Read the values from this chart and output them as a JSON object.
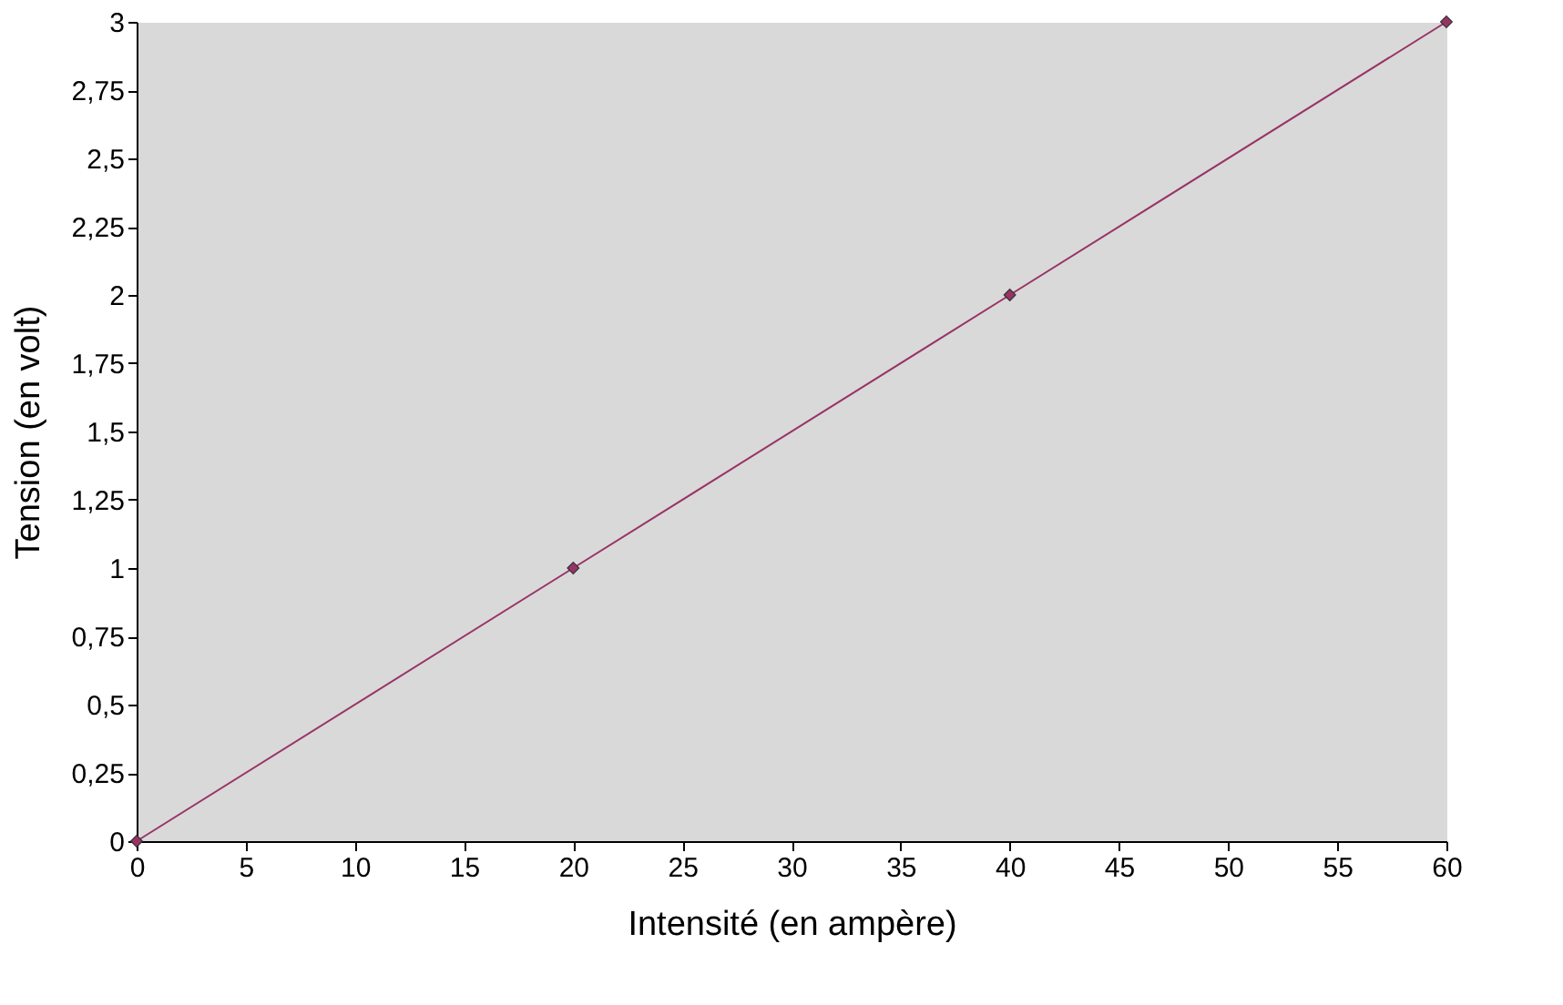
{
  "chart_data": {
    "type": "line",
    "xlabel": "Intensité (en ampère)",
    "ylabel": "Tension (en volt)",
    "x": [
      0,
      20,
      40,
      60
    ],
    "series": [
      {
        "color": "#993366",
        "values": [
          0,
          1,
          2,
          3
        ]
      }
    ],
    "marker": "diamond",
    "line_style": "solid",
    "xlim": [
      0,
      60
    ],
    "xticks": [
      0,
      5,
      10,
      15,
      20,
      25,
      30,
      35,
      40,
      45,
      50,
      55,
      60
    ],
    "ylim": [
      0,
      3
    ],
    "yticks": [
      0,
      {
        "value": 0.25,
        "label": "0,25"
      },
      {
        "value": 0.5,
        "label": "0,5"
      },
      {
        "value": 0.75,
        "label": "0,75"
      },
      1,
      {
        "value": 1.25,
        "label": "1,25"
      },
      {
        "value": 1.5,
        "label": "1,5"
      },
      {
        "value": 1.75,
        "label": "1,75"
      },
      2,
      {
        "value": 2.25,
        "label": "2,25"
      },
      {
        "value": 2.5,
        "label": "2,5"
      },
      {
        "value": 2.75,
        "label": "2,75"
      },
      3
    ]
  }
}
